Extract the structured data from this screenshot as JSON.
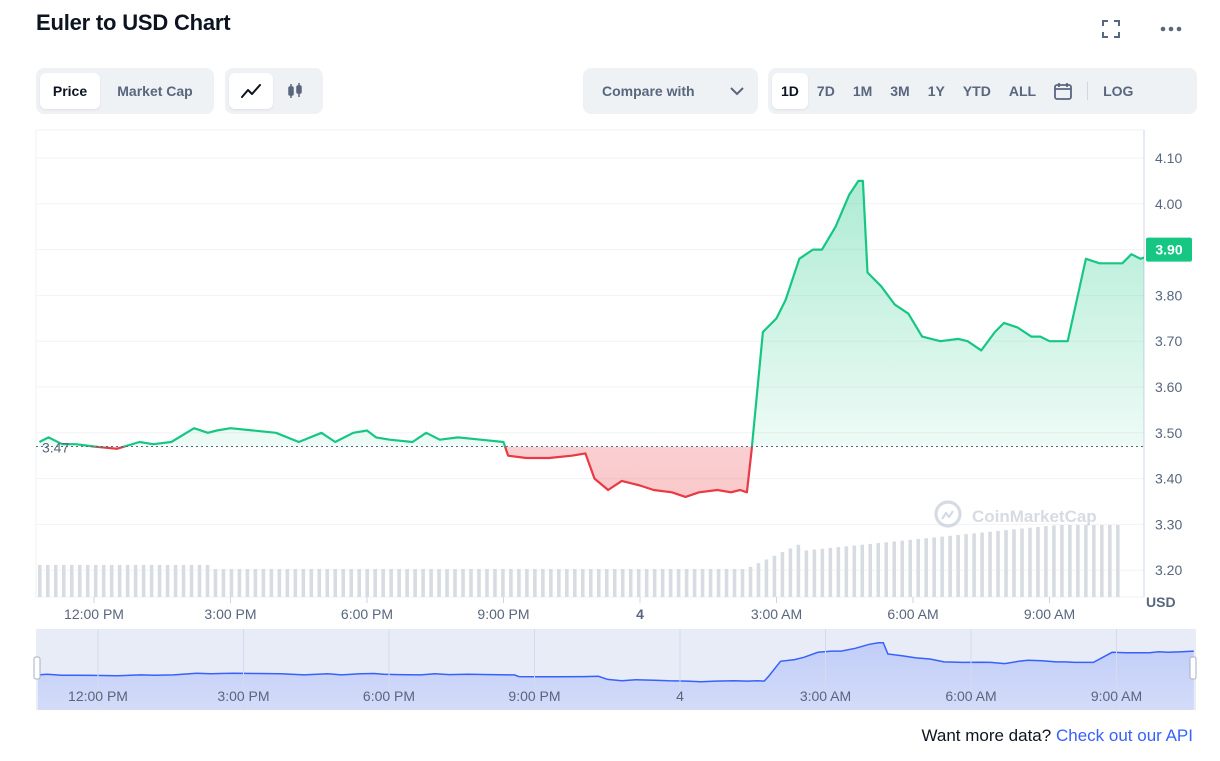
{
  "title": "Euler to USD Chart",
  "top_icons": [
    "fullscreen-icon",
    "more-icon"
  ],
  "tabs": {
    "price": "Price",
    "market_cap": "Market Cap"
  },
  "chart_types": [
    "line-chart-icon",
    "candlestick-icon"
  ],
  "compare_label": "Compare with",
  "ranges": [
    "1D",
    "7D",
    "1M",
    "3M",
    "1Y",
    "YTD",
    "ALL"
  ],
  "active_range": "1D",
  "log_label": "LOG",
  "footer": {
    "text": "Want more data?",
    "link": "Check out our API"
  },
  "watermark": "CoinMarketCap",
  "colors": {
    "up": "#16c784",
    "down": "#ea3943",
    "accent": "#3861fb",
    "muted": "#58667e"
  },
  "chart_data": {
    "type": "line",
    "ylabel": "USD",
    "ylim": [
      3.15,
      4.15
    ],
    "y_ticks": [
      "4.10",
      "4.00",
      "3.90",
      "3.80",
      "3.70",
      "3.60",
      "3.50",
      "3.40",
      "3.30",
      "3.20"
    ],
    "y_tick_values": [
      4.1,
      4.0,
      3.9,
      3.8,
      3.7,
      3.6,
      3.5,
      3.4,
      3.3,
      3.2
    ],
    "x_ticks": [
      "12:00 PM",
      "3:00 PM",
      "6:00 PM",
      "9:00 PM",
      "4",
      "3:00 AM",
      "6:00 AM",
      "9:00 AM"
    ],
    "x_tick_hours": [
      12,
      15,
      18,
      21,
      24,
      27,
      30,
      33
    ],
    "reference_price": 3.47,
    "reference_label": "3.47",
    "current_price": 3.9,
    "current_label": "3.90",
    "grid": true,
    "x_hours": [
      10.8,
      11.0,
      11.3,
      11.6,
      12.0,
      12.5,
      13.0,
      13.3,
      13.7,
      14.2,
      14.5,
      14.7,
      15.0,
      15.5,
      16.0,
      16.5,
      17.0,
      17.3,
      17.7,
      18.0,
      18.2,
      18.5,
      19.0,
      19.3,
      19.6,
      20.0,
      20.5,
      21.0,
      21.1,
      21.5,
      22.0,
      22.5,
      22.8,
      23.0,
      23.3,
      23.6,
      24.0,
      24.3,
      24.7,
      25.0,
      25.3,
      25.7,
      26.0,
      26.2,
      26.35,
      26.45,
      26.7,
      27.0,
      27.2,
      27.5,
      27.8,
      28.0,
      28.3,
      28.6,
      28.8,
      28.9,
      29.0,
      29.3,
      29.6,
      29.9,
      30.2,
      30.6,
      31.0,
      31.2,
      31.5,
      31.8,
      32.0,
      32.3,
      32.6,
      32.8,
      33.0,
      33.4,
      33.8,
      34.1,
      34.6,
      34.8,
      35.0,
      35.3,
      35.55
    ],
    "values": [
      3.48,
      3.49,
      3.475,
      3.475,
      3.47,
      3.465,
      3.48,
      3.475,
      3.48,
      3.51,
      3.5,
      3.505,
      3.51,
      3.505,
      3.5,
      3.48,
      3.5,
      3.48,
      3.5,
      3.505,
      3.49,
      3.485,
      3.48,
      3.5,
      3.485,
      3.49,
      3.485,
      3.48,
      3.45,
      3.445,
      3.445,
      3.45,
      3.455,
      3.4,
      3.375,
      3.395,
      3.385,
      3.375,
      3.37,
      3.36,
      3.37,
      3.375,
      3.37,
      3.375,
      3.37,
      3.46,
      3.72,
      3.75,
      3.79,
      3.88,
      3.9,
      3.9,
      3.95,
      4.02,
      4.05,
      4.05,
      3.85,
      3.82,
      3.78,
      3.76,
      3.71,
      3.7,
      3.705,
      3.7,
      3.68,
      3.72,
      3.74,
      3.73,
      3.71,
      3.71,
      3.7,
      3.7,
      3.88,
      3.87,
      3.87,
      3.89,
      3.88,
      3.89,
      3.9
    ],
    "volume_bars": 136
  }
}
